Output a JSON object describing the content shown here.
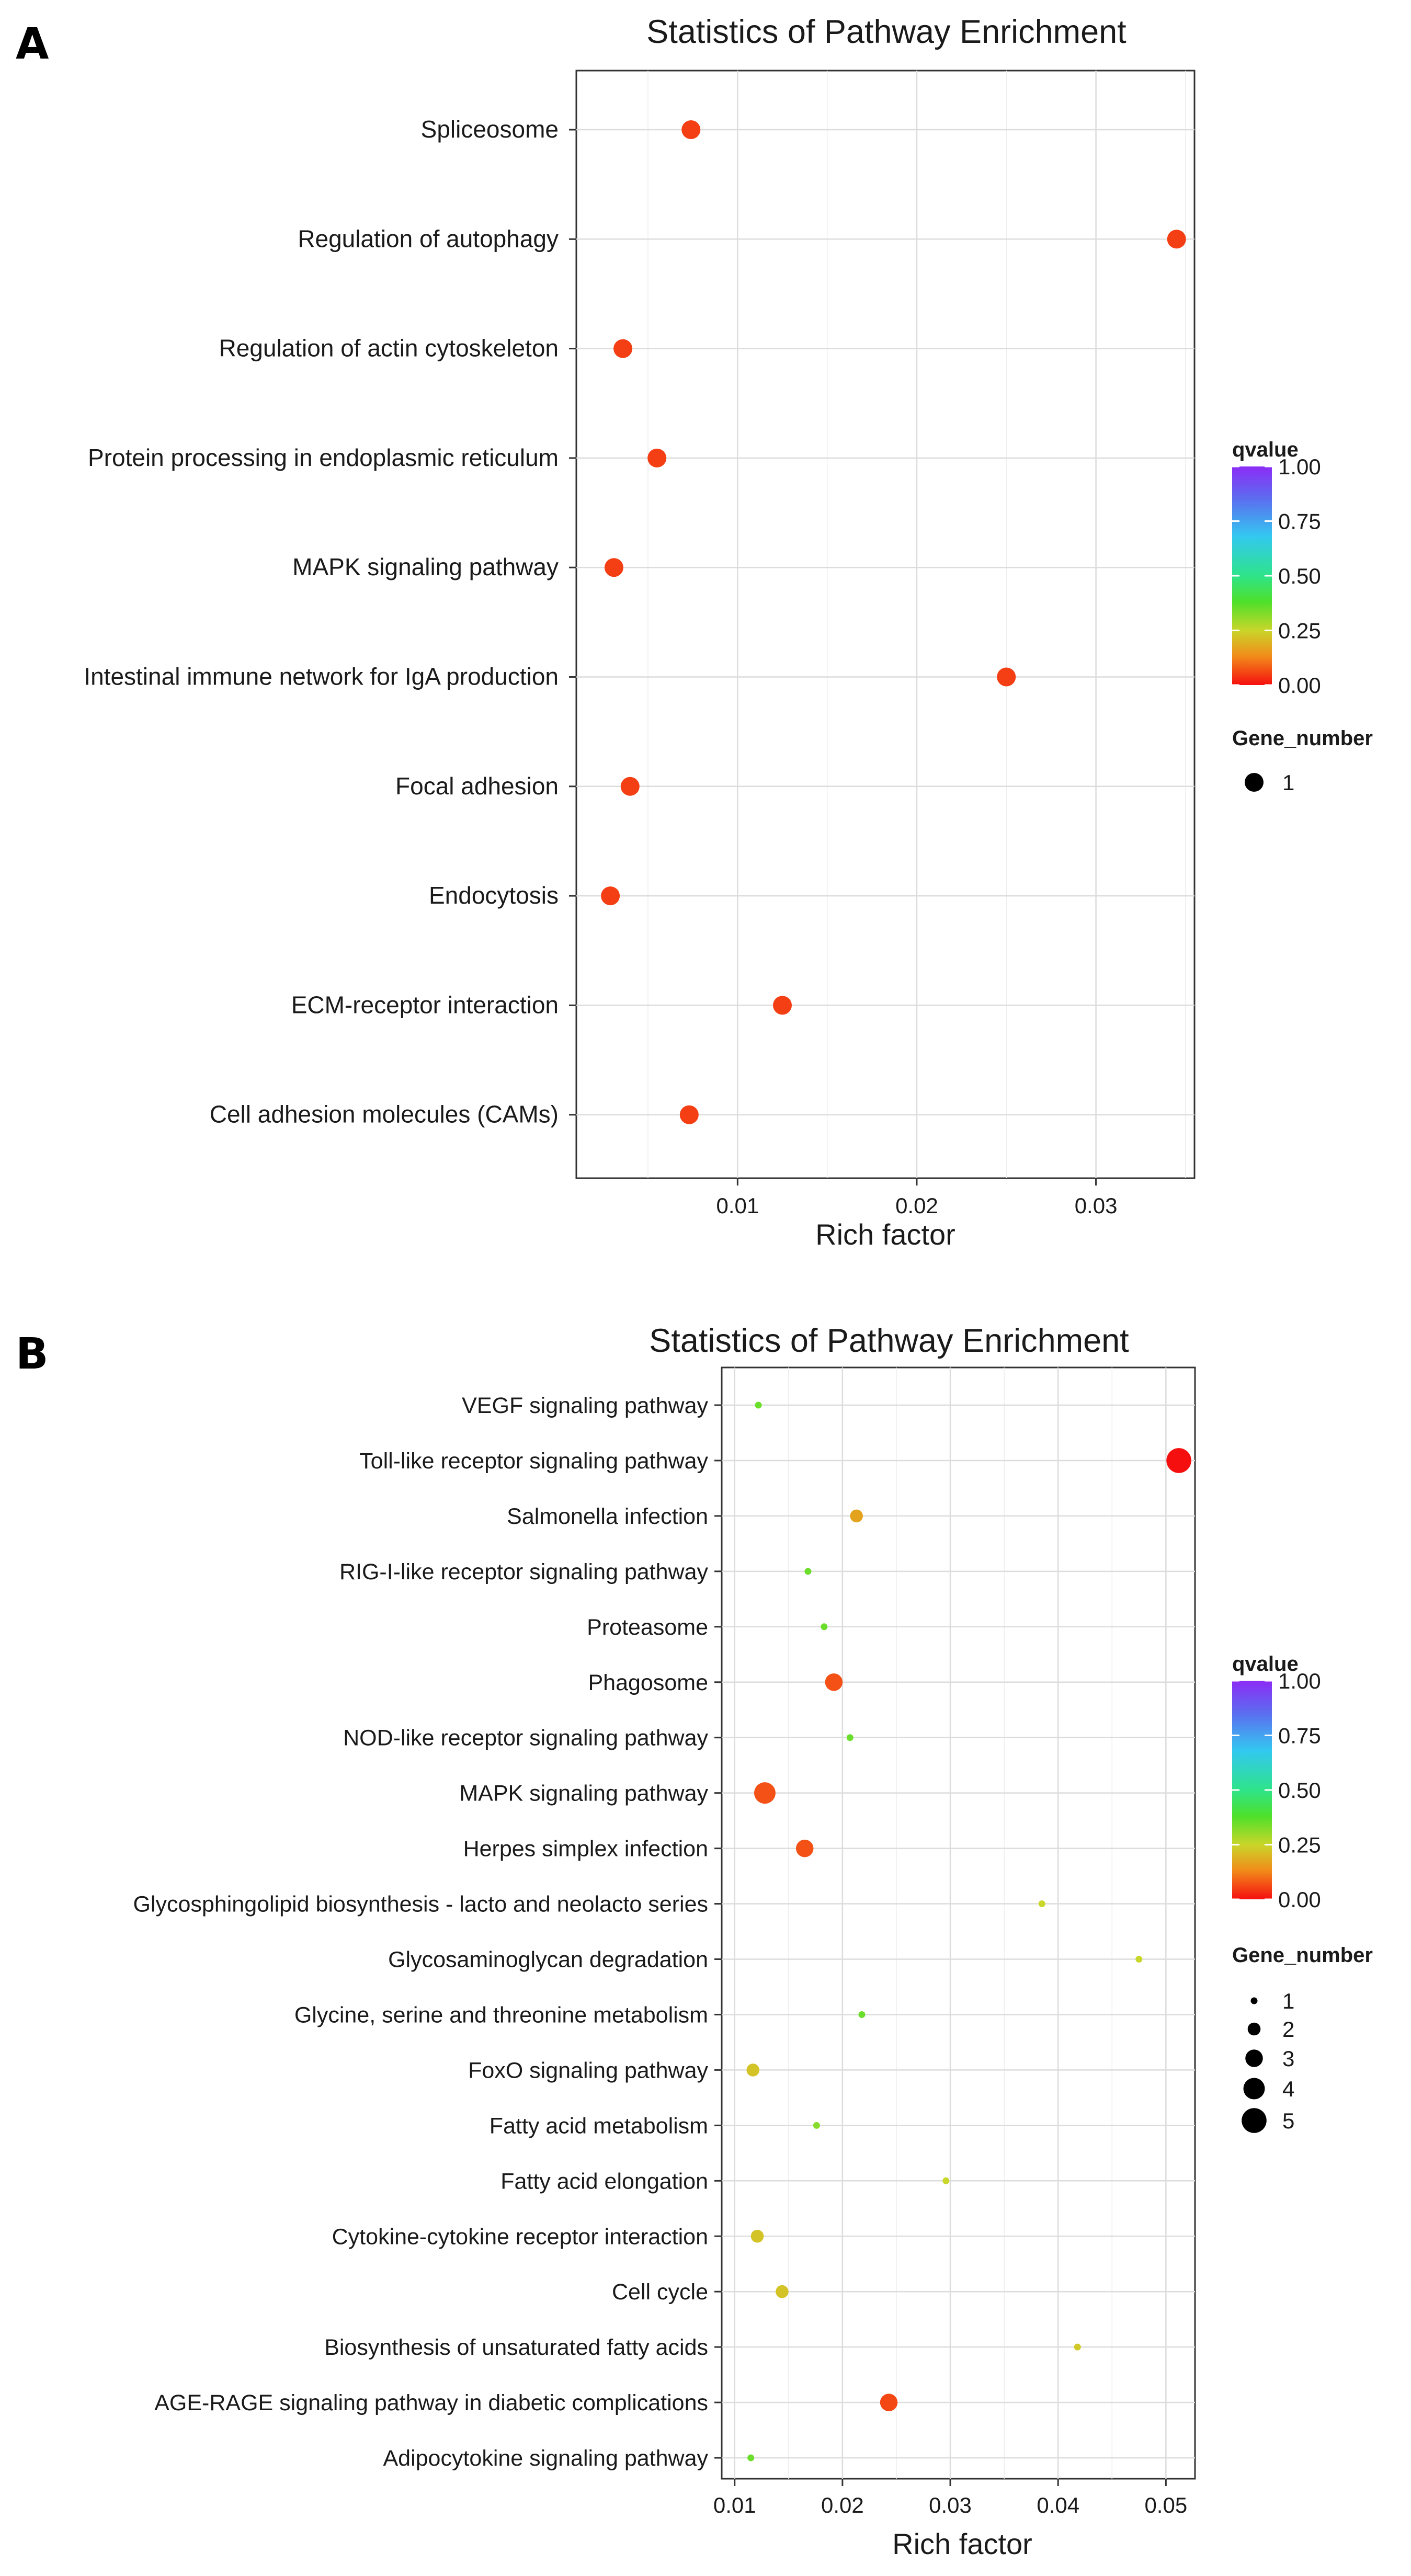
{
  "chart_data": [
    {
      "panel": "A",
      "type": "scatter",
      "title": "Statistics of Pathway Enrichment",
      "xlabel": "Rich factor",
      "ylabel": "",
      "xlim": [
        0.001,
        0.0355
      ],
      "xticks": [
        0.01,
        0.02,
        0.03
      ],
      "xtick_labels": [
        "0.01",
        "0.02",
        "0.03"
      ],
      "grid": true,
      "categories": [
        "Spliceosome",
        "Regulation of autophagy",
        "Regulation of actin cytoskeleton",
        "Protein processing in endoplasmic reticulum",
        "MAPK signaling pathway",
        "Intestinal immune network for IgA production",
        "Focal adhesion",
        "Endocytosis",
        "ECM-receptor interaction",
        "Cell adhesion molecules (CAMs)"
      ],
      "rich_factor": [
        0.0074,
        0.0345,
        0.0036,
        0.0055,
        0.0031,
        0.025,
        0.004,
        0.0029,
        0.0125,
        0.0073
      ],
      "gene_number": [
        1,
        1,
        1,
        1,
        1,
        1,
        1,
        1,
        1,
        1
      ],
      "qvalue": [
        0.05,
        0.05,
        0.05,
        0.05,
        0.05,
        0.05,
        0.05,
        0.05,
        0.05,
        0.05
      ],
      "color_legend": {
        "title": "qvalue",
        "ticks": [
          "1.00",
          "0.75",
          "0.50",
          "0.25",
          "0.00"
        ]
      },
      "size_legend": {
        "title": "Gene_number",
        "values": [
          1
        ],
        "labels": [
          "1"
        ]
      }
    },
    {
      "panel": "B",
      "type": "scatter",
      "title": "Statistics of Pathway Enrichment",
      "xlabel": "Rich factor",
      "ylabel": "",
      "xlim": [
        0.0088,
        0.0527
      ],
      "xticks": [
        0.01,
        0.02,
        0.03,
        0.04,
        0.05
      ],
      "xtick_labels": [
        "0.01",
        "0.02",
        "0.03",
        "0.04",
        "0.05"
      ],
      "grid": true,
      "categories": [
        "VEGF signaling pathway",
        "Toll-like receptor signaling pathway",
        "Salmonella infection",
        "RIG-I-like receptor signaling pathway",
        "Proteasome",
        "Phagosome",
        "NOD-like receptor signaling pathway",
        "MAPK signaling pathway",
        "Herpes simplex infection",
        "Glycosphingolipid biosynthesis - lacto and neolacto series",
        "Glycosaminoglycan degradation",
        "Glycine, serine and threonine metabolism",
        "FoxO signaling pathway",
        "Fatty acid metabolism",
        "Fatty acid elongation",
        "Cytokine-cytokine receptor interaction",
        "Cell cycle",
        "Biosynthesis of unsaturated fatty acids",
        "AGE-RAGE signaling pathway in diabetic complications",
        "Adipocytokine signaling pathway"
      ],
      "rich_factor": [
        0.0122,
        0.0512,
        0.0213,
        0.0168,
        0.0183,
        0.0192,
        0.0207,
        0.0128,
        0.0165,
        0.0385,
        0.0475,
        0.0218,
        0.0117,
        0.0176,
        0.0296,
        0.0121,
        0.0144,
        0.0418,
        0.0243,
        0.0115
      ],
      "gene_number": [
        1,
        5,
        2,
        1,
        1,
        3,
        1,
        4,
        3,
        1,
        1,
        1,
        2,
        1,
        1,
        2,
        2,
        1,
        3,
        1
      ],
      "qvalue": [
        0.35,
        0.0,
        0.17,
        0.35,
        0.35,
        0.07,
        0.35,
        0.07,
        0.07,
        0.25,
        0.25,
        0.35,
        0.22,
        0.32,
        0.25,
        0.22,
        0.22,
        0.23,
        0.06,
        0.35
      ],
      "color_legend": {
        "title": "qvalue",
        "ticks": [
          "1.00",
          "0.75",
          "0.50",
          "0.25",
          "0.00"
        ]
      },
      "size_legend": {
        "title": "Gene_number",
        "values": [
          1,
          2,
          3,
          4,
          5
        ],
        "labels": [
          "1",
          "2",
          "3",
          "4",
          "5"
        ]
      }
    }
  ]
}
